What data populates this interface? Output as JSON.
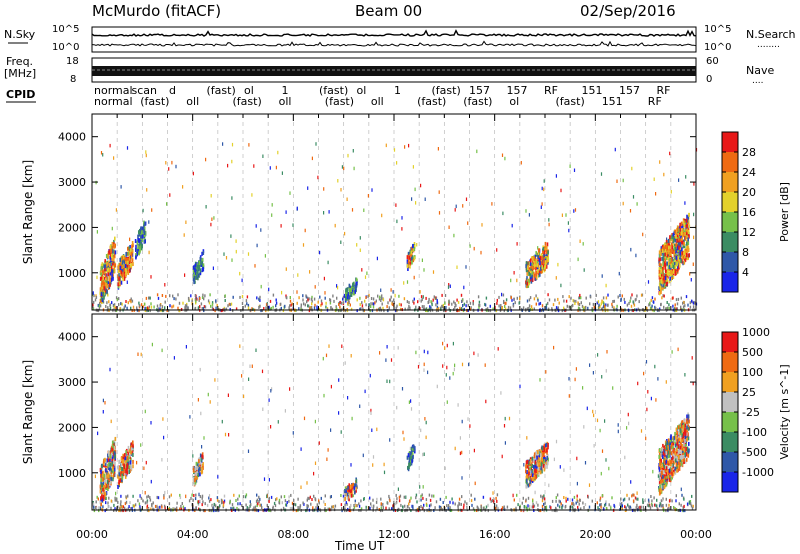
{
  "header": {
    "station": "McMurdo (fitACF)",
    "beam": "Beam 00",
    "date": "02/Sep/2016"
  },
  "top_panel_labels": {
    "nsky": "N.Sky",
    "nsearch": "N.Search",
    "dots": "........",
    "freq": "Freq.",
    "mhz": "[MHz]",
    "nave": "Nave",
    "nave_dots": "....",
    "cpid": "CPID",
    "noise_ticks": [
      "10^5",
      "10^0"
    ],
    "freq_ticks": [
      "18",
      "8"
    ],
    "nave_ticks": [
      "60",
      "0"
    ]
  },
  "cpid_text": {
    "row1": [
      "normal",
      "scan",
      "d",
      "(fast)",
      "ol",
      "1",
      "(fast)",
      "ol",
      "1",
      "(fast)",
      "157",
      "157",
      "RF",
      "151",
      "157",
      "RF"
    ],
    "row2": [
      "normal",
      "(fast)",
      "oll",
      "(fast)",
      "oll",
      "(fast)",
      "oll",
      "(fast)",
      "(fast)",
      "ol",
      "(fast)",
      "151",
      "RF"
    ]
  },
  "colors": {
    "power": [
      "#1a25e8",
      "#2f58a8",
      "#3b8c63",
      "#76c04a",
      "#e3d12b",
      "#f0a020",
      "#ef6a12",
      "#e81818"
    ],
    "velocity": [
      "#1a25e8",
      "#2f58a8",
      "#3b8c63",
      "#76c04a",
      "#c0c0c0",
      "#f0a020",
      "#ef6a12",
      "#e81818"
    ],
    "ground": "#808080"
  },
  "chart_data": [
    {
      "type": "heatmap",
      "name": "power",
      "ylabel": "Slant Range [km]",
      "colorbar_label": "Power [dB]",
      "colorbar_ticks": [
        "4",
        "8",
        "12",
        "16",
        "20",
        "24",
        "28"
      ],
      "colorbar_range": [
        0,
        32
      ],
      "x": [
        "00:00",
        "04:00",
        "08:00",
        "12:00",
        "16:00",
        "20:00",
        "00:00"
      ],
      "yticks": [
        1000,
        2000,
        3000,
        4000
      ],
      "ylim": [
        180,
        4500
      ],
      "grid": "vertical dashed every 1 hour",
      "patches": [
        {
          "t": [
            0.3,
            0.9
          ],
          "r": [
            600,
            1800
          ],
          "level": "mixed blue-green-red"
        },
        {
          "t": [
            1.0,
            1.6
          ],
          "r": [
            900,
            1700
          ],
          "level": "mixed green-orange"
        },
        {
          "t": [
            1.7,
            2.1
          ],
          "r": [
            1500,
            2200
          ],
          "level": "blue-green"
        },
        {
          "t": [
            4.0,
            4.4
          ],
          "r": [
            900,
            1500
          ],
          "level": "blue"
        },
        {
          "t": [
            10.0,
            10.5
          ],
          "r": [
            500,
            900
          ],
          "level": "blue-green"
        },
        {
          "t": [
            12.5,
            12.8
          ],
          "r": [
            1200,
            1700
          ],
          "level": "blue-green-yellow"
        },
        {
          "t": [
            17.2,
            18.1
          ],
          "r": [
            900,
            1700
          ],
          "level": "green-orange-red"
        },
        {
          "t": [
            22.5,
            23.7
          ],
          "r": [
            900,
            2300
          ],
          "level": "green-orange-red"
        }
      ]
    },
    {
      "type": "heatmap",
      "name": "velocity",
      "ylabel": "Slant Range [km]",
      "colorbar_label": "Velocity [m s^-1]",
      "colorbar_ticks": [
        "-1000",
        "-500",
        "-100",
        "-25",
        "25",
        "100",
        "500",
        "1000"
      ],
      "colorbar_range": [
        -1000,
        1000
      ],
      "x": [
        "00:00",
        "04:00",
        "08:00",
        "12:00",
        "16:00",
        "20:00",
        "00:00"
      ],
      "xlabel": "Time UT",
      "yticks": [
        1000,
        2000,
        3000,
        4000
      ],
      "ylim": [
        180,
        4500
      ],
      "patches": [
        {
          "t": [
            0.3,
            0.9
          ],
          "r": [
            600,
            1800
          ],
          "level": "orange-green"
        },
        {
          "t": [
            1.0,
            1.6
          ],
          "r": [
            900,
            1700
          ],
          "level": "orange"
        },
        {
          "t": [
            4.0,
            4.4
          ],
          "r": [
            900,
            1500
          ],
          "level": "orange-blue"
        },
        {
          "t": [
            10.0,
            10.5
          ],
          "r": [
            500,
            900
          ],
          "level": "orange"
        },
        {
          "t": [
            12.5,
            12.8
          ],
          "r": [
            1200,
            1700
          ],
          "level": "blue-green"
        },
        {
          "t": [
            17.2,
            18.1
          ],
          "r": [
            900,
            1700
          ],
          "level": "orange"
        },
        {
          "t": [
            22.5,
            23.7
          ],
          "r": [
            900,
            2300
          ],
          "level": "orange-red"
        }
      ]
    }
  ]
}
